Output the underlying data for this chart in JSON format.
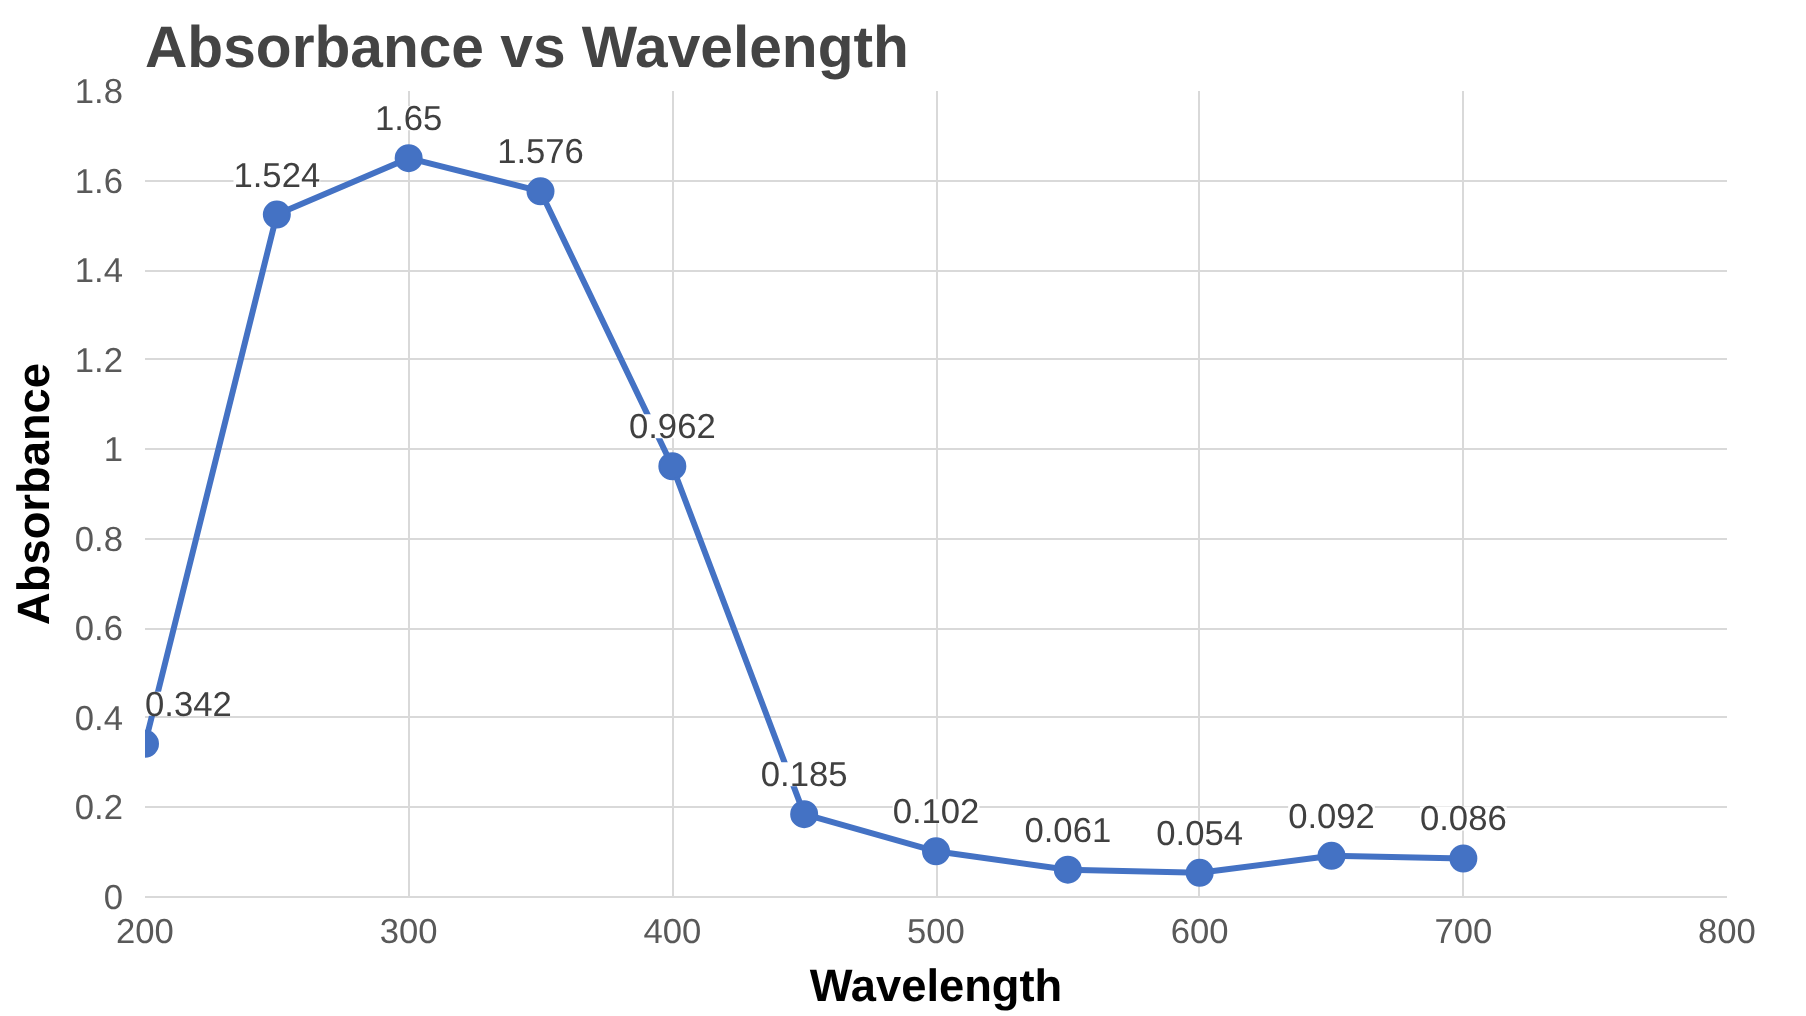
{
  "chart_data": {
    "type": "line",
    "title": "Absorbance vs Wavelength",
    "xlabel": "Wavelength",
    "ylabel": "Absorbance",
    "x": [
      200,
      250,
      300,
      350,
      400,
      450,
      500,
      550,
      600,
      650,
      700
    ],
    "series": [
      {
        "color": "#4472c4",
        "values": [
          0.342,
          1.524,
          1.65,
          1.576,
          0.962,
          0.185,
          0.102,
          0.061,
          0.054,
          0.092,
          0.086
        ]
      }
    ],
    "xlim": [
      200,
      800
    ],
    "xticks": [
      200,
      300,
      400,
      500,
      600,
      700,
      800
    ],
    "ylim": [
      0,
      1.8
    ],
    "yticks": [
      0,
      0.2,
      0.4,
      0.6,
      0.8,
      1,
      1.2,
      1.4,
      1.6,
      1.8
    ],
    "grid": true,
    "marker": "circle",
    "line_style": "solid",
    "data_labels": true
  }
}
